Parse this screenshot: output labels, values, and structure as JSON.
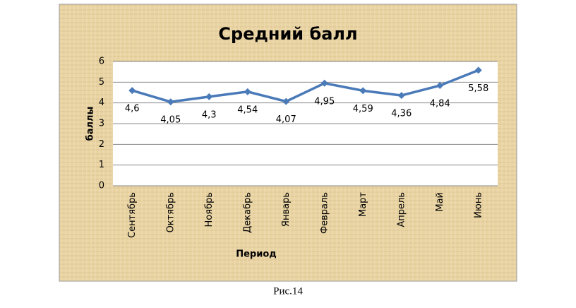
{
  "chart_data": {
    "type": "line",
    "title": "Средний балл",
    "x_label": "Период",
    "y_label": "баллы",
    "categories": [
      "Сентябрь",
      "Октябрь",
      "Ноябрь",
      "Декабрь",
      "Январь",
      "Февраль",
      "Март",
      "Апрель",
      "Май",
      "Июнь"
    ],
    "values": [
      4.6,
      4.05,
      4.3,
      4.54,
      4.07,
      4.95,
      4.59,
      4.36,
      4.84,
      5.58
    ],
    "value_labels": [
      "4,6",
      "4,05",
      "4,3",
      "4,54",
      "4,07",
      "4,95",
      "4,59",
      "4,36",
      "4,84",
      "5,58"
    ],
    "color": "#4a7ab8",
    "ylim": [
      0,
      6
    ],
    "yticks": [
      0,
      1,
      2,
      3,
      4,
      5,
      6
    ],
    "grid": true,
    "caption": "Рис.14"
  }
}
